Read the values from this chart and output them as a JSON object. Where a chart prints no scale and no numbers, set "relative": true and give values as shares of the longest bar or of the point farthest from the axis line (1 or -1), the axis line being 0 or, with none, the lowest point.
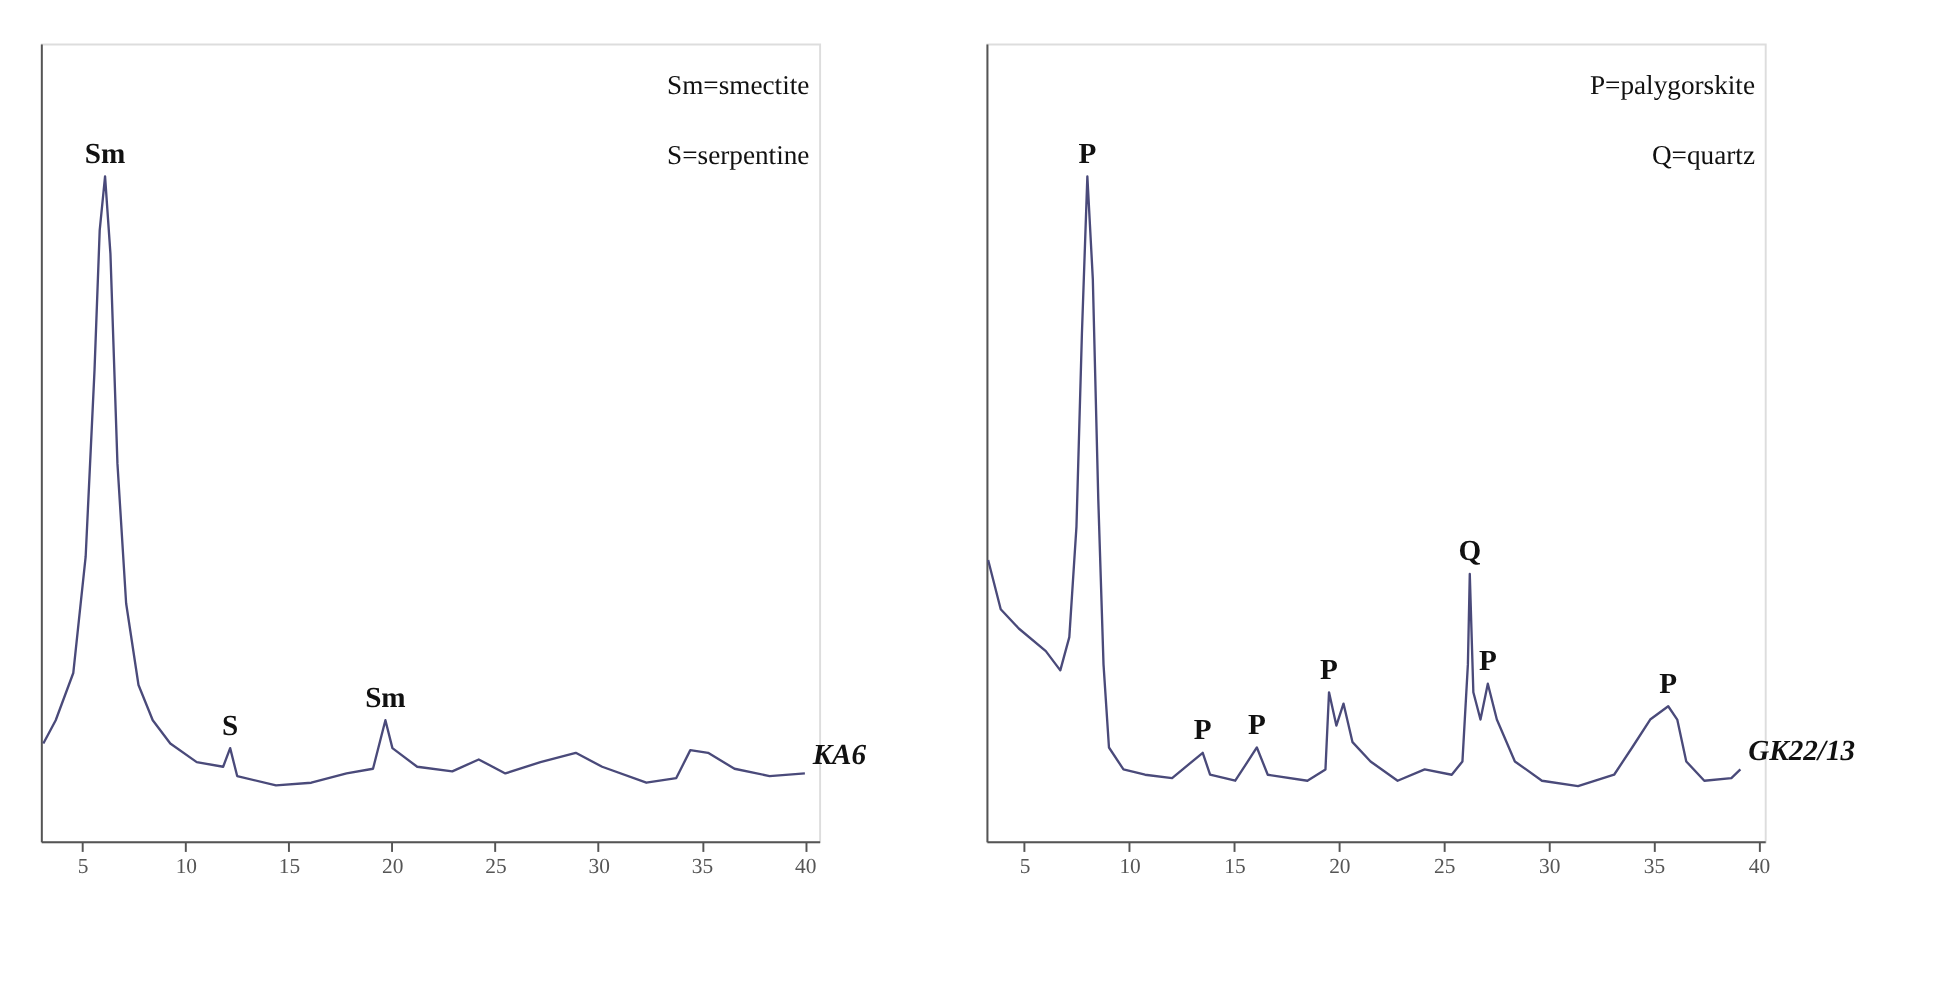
{
  "chart_data": [
    {
      "type": "line",
      "relative": true,
      "tick_labels": "x",
      "color": "#4a4a7a",
      "xlim": [
        3,
        40.7
      ],
      "xticks": [
        5,
        10,
        15,
        20,
        25,
        30,
        35,
        40
      ],
      "x": [
        3.12,
        3.72,
        4.57,
        5.17,
        5.6,
        5.85,
        6.11,
        6.37,
        6.71,
        7.13,
        7.73,
        8.42,
        9.27,
        10.55,
        11.83,
        12.17,
        12.51,
        14.39,
        16.1,
        17.81,
        19.09,
        19.69,
        20.03,
        21.23,
        22.93,
        24.21,
        25.5,
        27.2,
        28.91,
        30.19,
        32.33,
        33.78,
        34.46,
        35.32,
        36.6,
        38.3,
        40.01
      ],
      "values": [
        0.147,
        0.182,
        0.253,
        0.428,
        0.709,
        0.919,
        1.0,
        0.884,
        0.568,
        0.358,
        0.235,
        0.182,
        0.147,
        0.119,
        0.112,
        0.14,
        0.098,
        0.084,
        0.088,
        0.102,
        0.109,
        0.182,
        0.14,
        0.112,
        0.105,
        0.123,
        0.102,
        0.119,
        0.133,
        0.112,
        0.088,
        0.095,
        0.137,
        0.133,
        0.109,
        0.098,
        0.102
      ],
      "annotations": [
        "Sm=smectite",
        "S=serpentine",
        {
          "text": "Sm",
          "x": 6.11,
          "y": 1.0
        },
        {
          "text": "S",
          "x": 12.17,
          "y": 0.14
        },
        {
          "text": "Sm",
          "x": 19.69,
          "y": 0.182
        },
        "KA6"
      ]
    },
    {
      "type": "line",
      "relative": true,
      "tick_labels": "x",
      "color": "#4a4a7a",
      "xlim": [
        3.2,
        40.3
      ],
      "xticks": [
        5,
        10,
        15,
        20,
        25,
        30,
        35,
        40
      ],
      "x": [
        3.28,
        3.88,
        4.74,
        6.03,
        6.72,
        7.15,
        7.49,
        7.75,
        8.01,
        8.27,
        8.53,
        8.78,
        9.04,
        9.73,
        10.76,
        12.05,
        13.51,
        13.86,
        15.06,
        16.09,
        16.61,
        18.5,
        19.36,
        19.53,
        19.88,
        20.22,
        20.65,
        21.51,
        22.8,
        24.09,
        25.38,
        25.89,
        26.15,
        26.24,
        26.41,
        26.75,
        27.1,
        27.53,
        28.39,
        29.68,
        31.4,
        33.12,
        33.98,
        34.84,
        35.7,
        36.13,
        36.56,
        37.42,
        38.71,
        39.14
      ],
      "values": [
        0.423,
        0.349,
        0.32,
        0.286,
        0.257,
        0.307,
        0.473,
        0.763,
        1.0,
        0.846,
        0.515,
        0.266,
        0.141,
        0.108,
        0.1,
        0.095,
        0.133,
        0.1,
        0.091,
        0.141,
        0.1,
        0.091,
        0.108,
        0.224,
        0.174,
        0.207,
        0.149,
        0.12,
        0.091,
        0.108,
        0.1,
        0.12,
        0.266,
        0.402,
        0.224,
        0.183,
        0.237,
        0.183,
        0.12,
        0.091,
        0.083,
        0.1,
        0.141,
        0.183,
        0.203,
        0.183,
        0.12,
        0.091,
        0.095,
        0.108
      ],
      "annotations": [
        "P=palygorskite",
        "Q=quartz",
        {
          "text": "P",
          "x": 8.01,
          "y": 1.0
        },
        {
          "text": "P",
          "x": 13.51,
          "y": 0.133
        },
        {
          "text": "P",
          "x": 16.09,
          "y": 0.141
        },
        {
          "text": "P",
          "x": 19.53,
          "y": 0.224
        },
        {
          "text": "Q",
          "x": 26.24,
          "y": 0.402
        },
        {
          "text": "P",
          "x": 27.1,
          "y": 0.237
        },
        {
          "text": "P",
          "x": 35.7,
          "y": 0.203
        },
        "GK22/13"
      ]
    }
  ]
}
